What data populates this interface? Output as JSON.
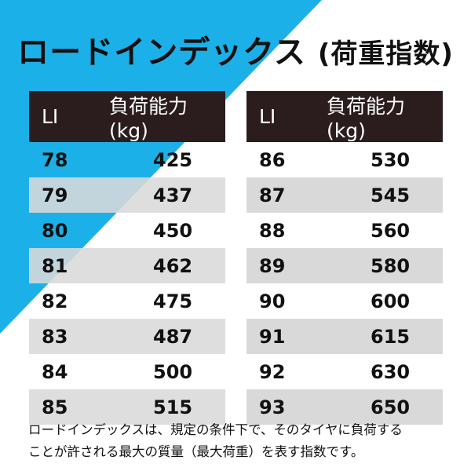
{
  "title": {
    "main": "ロードインデックス",
    "paren": "(荷重指数)"
  },
  "colors": {
    "accent_blue": "#1cb0e8",
    "header_bg": "#2b1d1d",
    "row_shade": "#d9d9d9"
  },
  "table_left": {
    "headers": {
      "li": "LI",
      "load": "負荷能力(kg)"
    },
    "rows": [
      {
        "li": "78",
        "load": "425"
      },
      {
        "li": "79",
        "load": "437"
      },
      {
        "li": "80",
        "load": "450"
      },
      {
        "li": "81",
        "load": "462"
      },
      {
        "li": "82",
        "load": "475"
      },
      {
        "li": "83",
        "load": "487"
      },
      {
        "li": "84",
        "load": "500"
      },
      {
        "li": "85",
        "load": "515"
      }
    ]
  },
  "table_right": {
    "headers": {
      "li": "LI",
      "load": "負荷能力(kg)"
    },
    "rows": [
      {
        "li": "86",
        "load": "530"
      },
      {
        "li": "87",
        "load": "545"
      },
      {
        "li": "88",
        "load": "560"
      },
      {
        "li": "89",
        "load": "580"
      },
      {
        "li": "90",
        "load": "600"
      },
      {
        "li": "91",
        "load": "615"
      },
      {
        "li": "92",
        "load": "630"
      },
      {
        "li": "93",
        "load": "650"
      }
    ]
  },
  "note": {
    "line1": "ロードインデックスは、規定の条件下で、そのタイヤに負荷する",
    "line2": "ことが許される最大の質量（最大荷重）を表す指数です。"
  }
}
